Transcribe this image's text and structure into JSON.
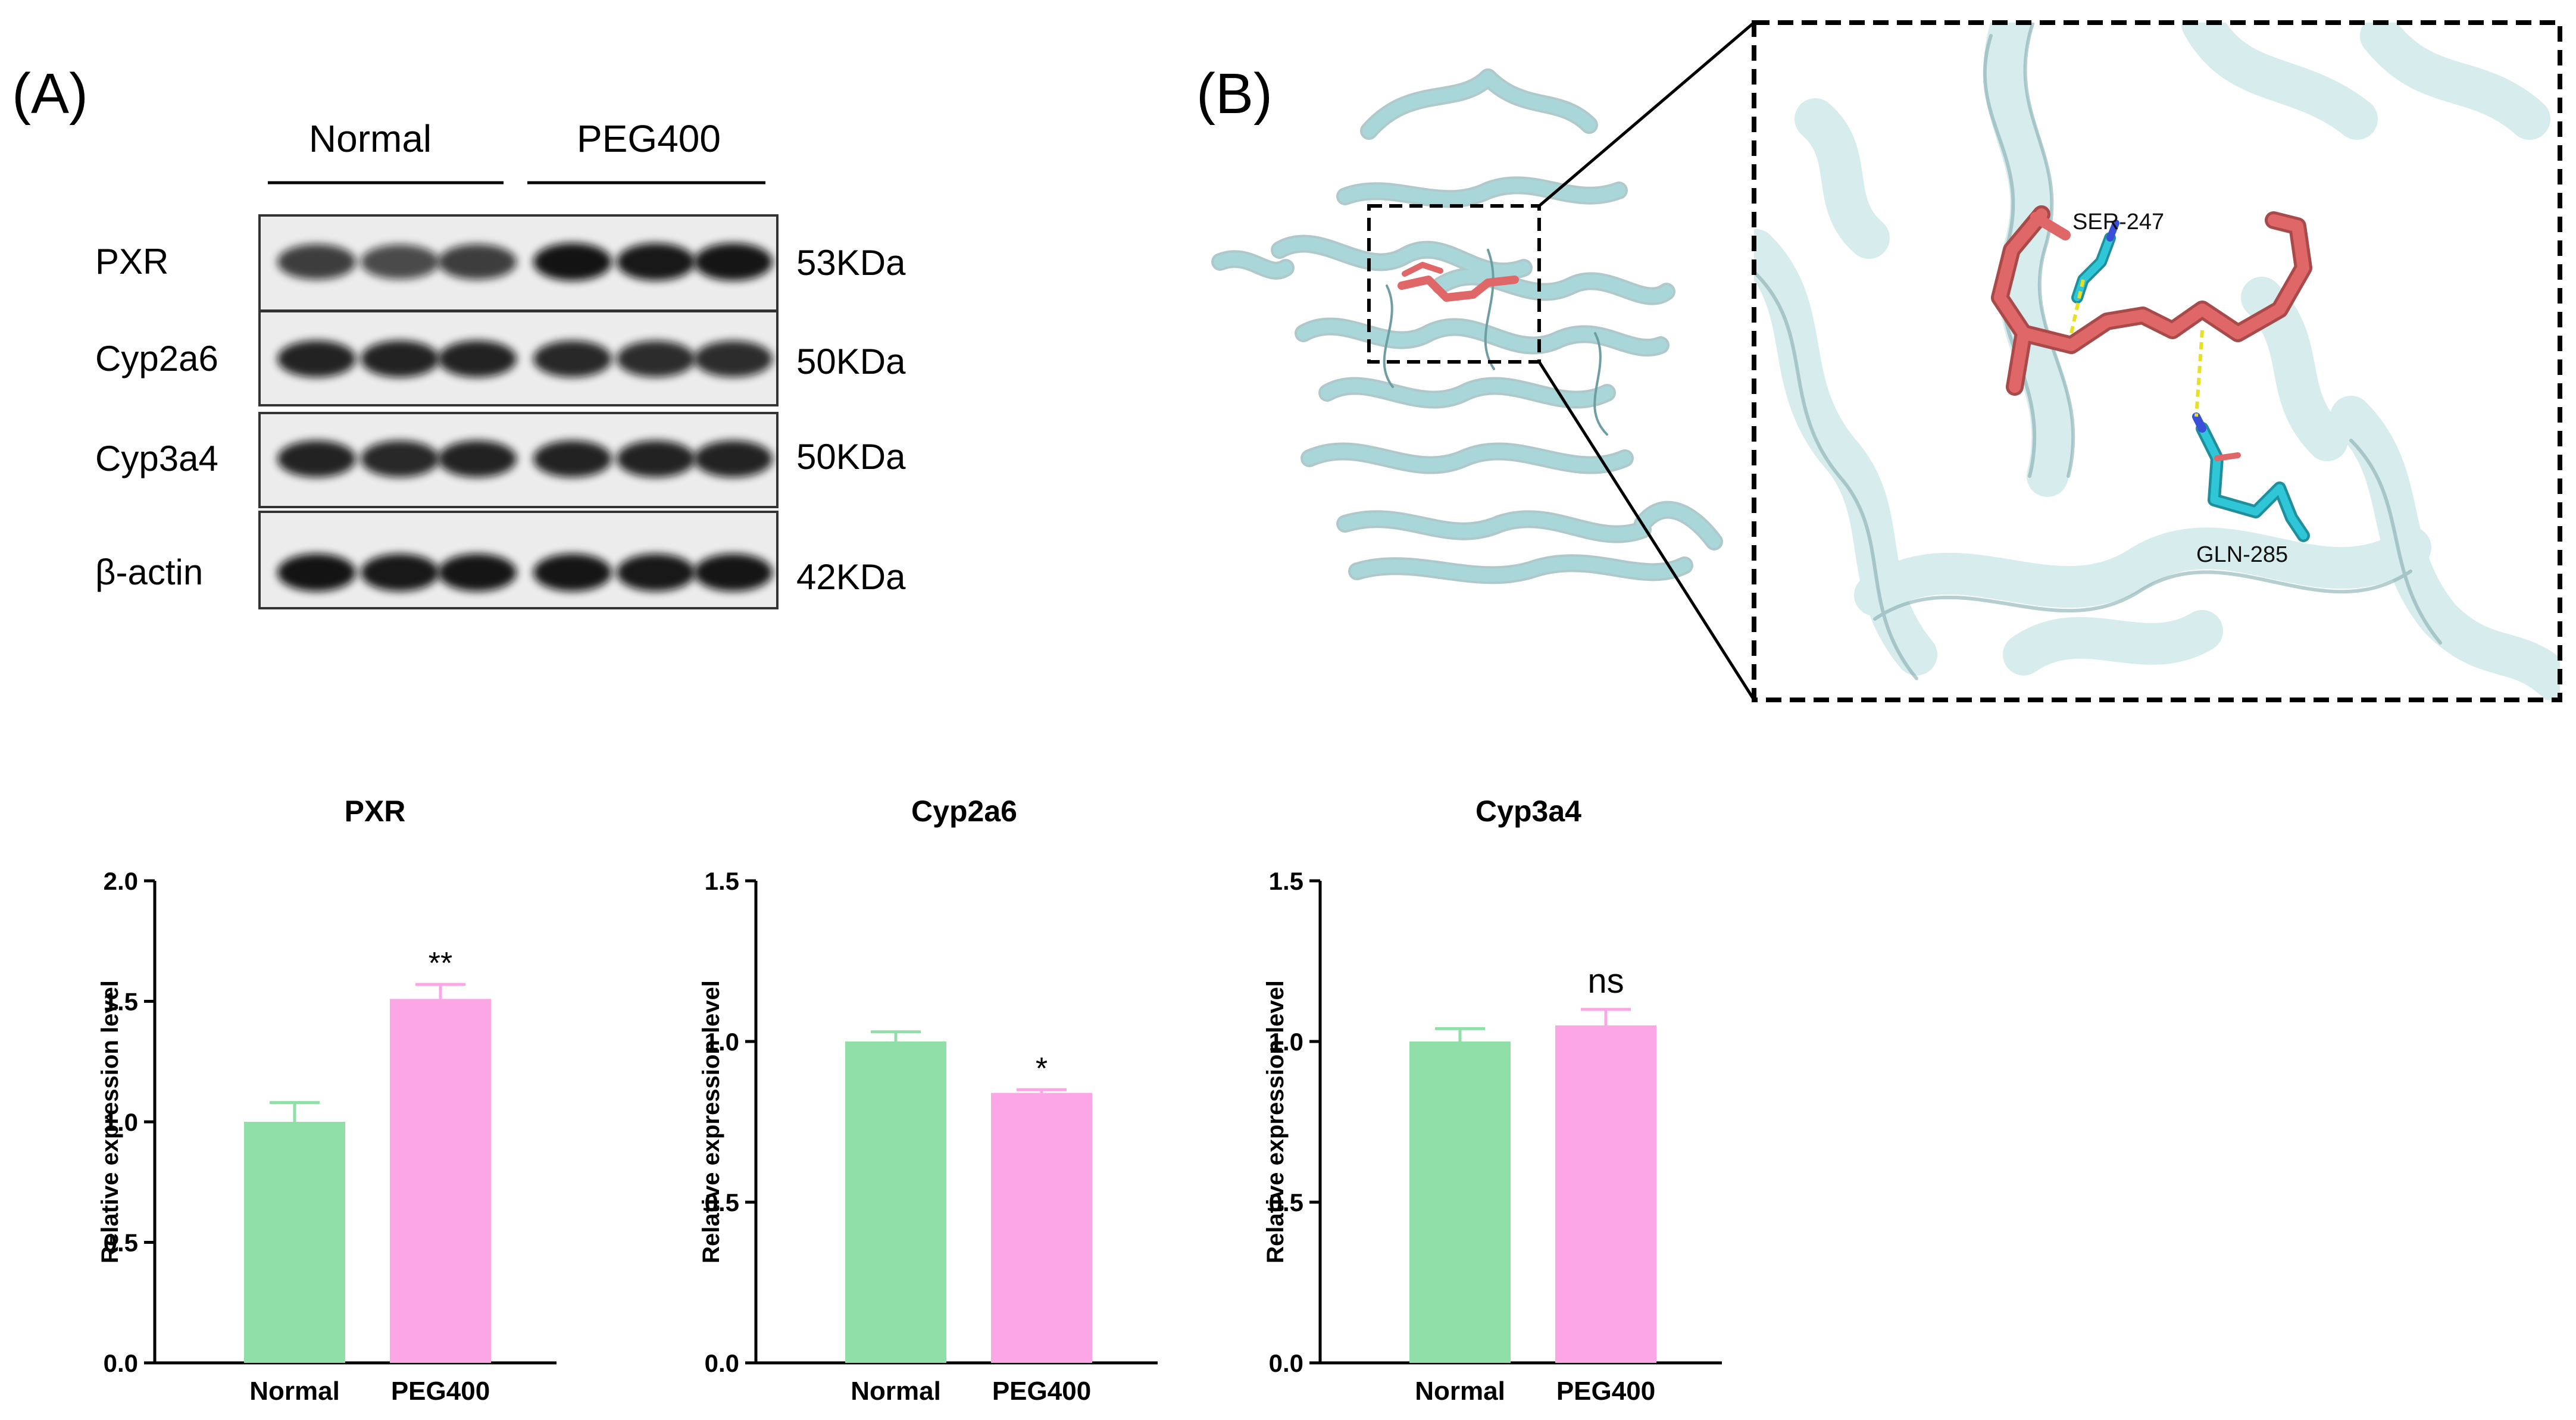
{
  "figure": {
    "panel_a_label": "(A)",
    "panel_b_label": "(B)"
  },
  "blot": {
    "groups": [
      "Normal",
      "PEG400"
    ],
    "proteins": [
      {
        "name": "PXR",
        "size": "53KDa"
      },
      {
        "name": "Cyp2a6",
        "size": "50KDa"
      },
      {
        "name": "Cyp3a4",
        "size": "50KDa"
      },
      {
        "name": "β-actin",
        "size": "42KDa"
      }
    ]
  },
  "docking": {
    "residues": [
      "SER-247",
      "GLN-285"
    ],
    "colors": {
      "protein": "#a9d6d9",
      "ligand": "#e06767",
      "residue": "#2fc7d8",
      "hbond": "#e8e020"
    }
  },
  "colors": {
    "normal": "#90dfa9",
    "peg400": "#fca6e6"
  },
  "chart_data": [
    {
      "type": "bar",
      "title": "PXR",
      "ylabel": "Relative expression level",
      "categories": [
        "Normal",
        "PEG400"
      ],
      "values": [
        1.0,
        1.51
      ],
      "errors": [
        0.08,
        0.06
      ],
      "annotations": [
        "",
        "**"
      ],
      "ylim": [
        0,
        2.0
      ],
      "yticks": [
        "0.0",
        "0.5",
        "1.0",
        "1.5",
        "2.0"
      ]
    },
    {
      "type": "bar",
      "title": "Cyp2a6",
      "ylabel": "Relative expression level",
      "categories": [
        "Normal",
        "PEG400"
      ],
      "values": [
        1.0,
        0.84
      ],
      "errors": [
        0.03,
        0.01
      ],
      "annotations": [
        "",
        "*"
      ],
      "ylim": [
        0,
        1.5
      ],
      "yticks": [
        "0.0",
        "0.5",
        "1.0",
        "1.5"
      ]
    },
    {
      "type": "bar",
      "title": "Cyp3a4",
      "ylabel": "Relative expression level",
      "categories": [
        "Normal",
        "PEG400"
      ],
      "values": [
        1.0,
        1.05
      ],
      "errors": [
        0.04,
        0.05
      ],
      "annotations": [
        "",
        "ns"
      ],
      "ylim": [
        0,
        1.5
      ],
      "yticks": [
        "0.0",
        "0.5",
        "1.0",
        "1.5"
      ]
    }
  ]
}
